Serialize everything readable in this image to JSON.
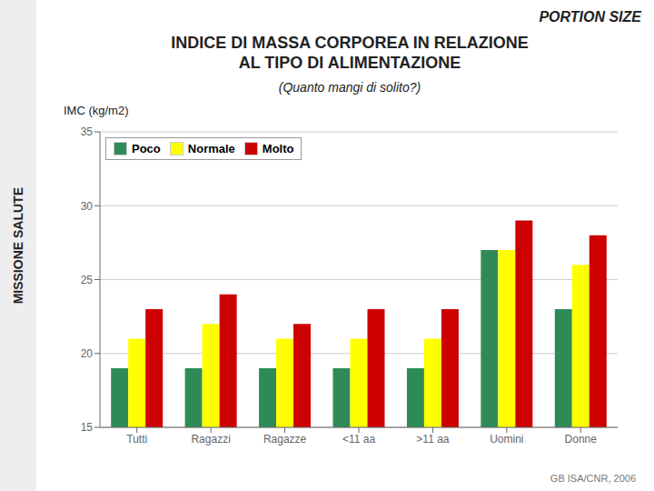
{
  "chart_data": {
    "type": "bar",
    "title": "INDICE DI MASSA CORPOREA IN RELAZIONE\nAL TIPO DI ALIMENTAZIONE",
    "subtitle": "(Quanto mangi di solito?)",
    "ylabel": "IMC (kg/m2)",
    "annotations": [
      "MISSIONE SALUTE",
      "PORTION SIZE",
      "GB ISA/CNR, 2006"
    ],
    "categories": [
      "Tutti",
      "Ragazzi",
      "Ragazze",
      "<11 aa",
      ">11 aa",
      "Uomini",
      "Donne"
    ],
    "series": [
      {
        "name": "Poco",
        "color": "#2e8b57",
        "values": [
          19.0,
          19.0,
          19.0,
          19.0,
          19.0,
          27.0,
          23.0
        ]
      },
      {
        "name": "Normale",
        "color": "#ffff00",
        "values": [
          21.0,
          22.0,
          21.0,
          21.0,
          21.0,
          27.0,
          26.0
        ]
      },
      {
        "name": "Molto",
        "color": "#cc0000",
        "values": [
          23.0,
          24.0,
          22.0,
          23.0,
          23.0,
          29.0,
          28.0
        ]
      }
    ],
    "ylim": [
      15,
      35
    ],
    "yticks": [
      15,
      20,
      25,
      30,
      35
    ],
    "grid": true,
    "legend": "upper left"
  }
}
